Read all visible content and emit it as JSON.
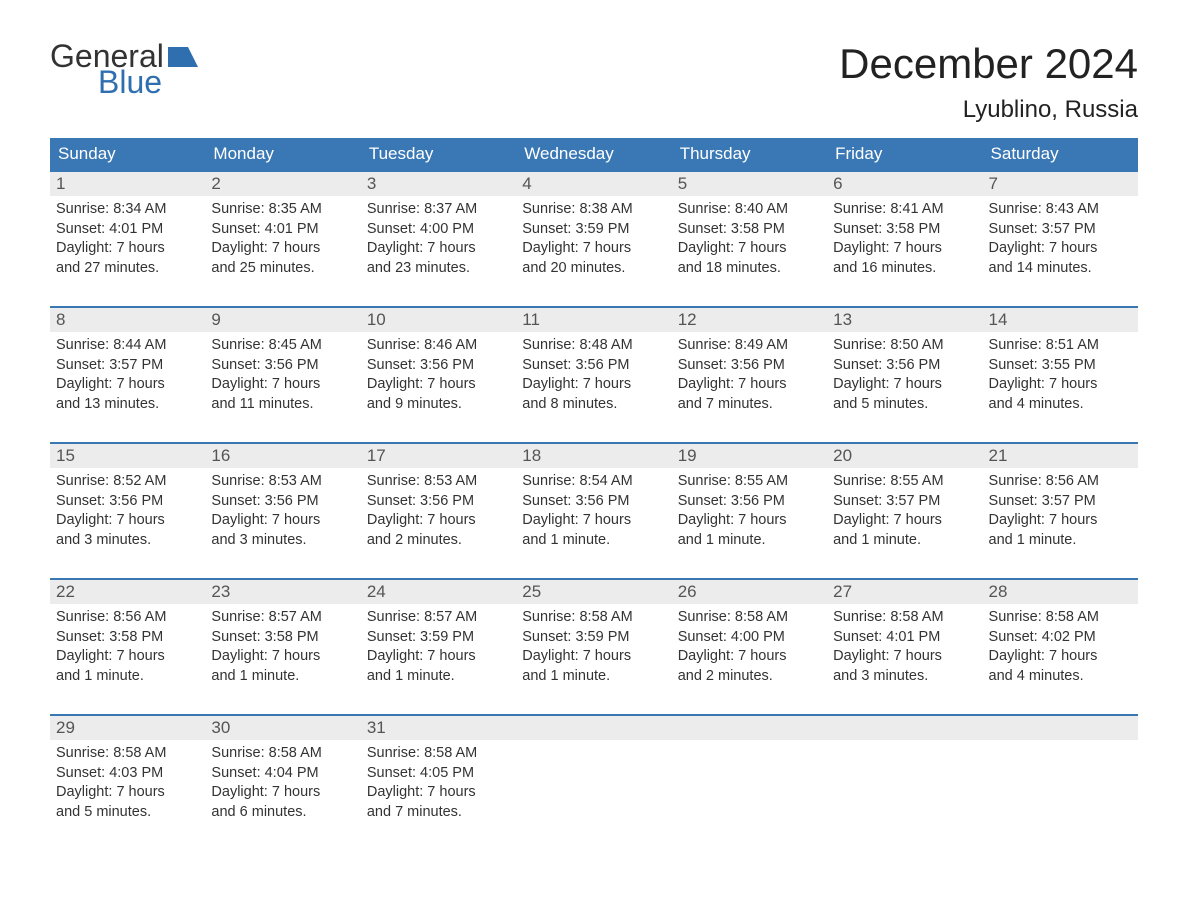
{
  "logo": {
    "word1": "General",
    "word2": "Blue",
    "iconColor": "#2f6fb0"
  },
  "title": "December 2024",
  "location": "Lyublino, Russia",
  "colors": {
    "headerBg": "#3a78b5",
    "headerText": "#ffffff",
    "dayNumBg": "#ececec",
    "dayNumText": "#555555",
    "bodyText": "#333333",
    "accent": "#3a78b5",
    "pageBg": "#ffffff"
  },
  "fonts": {
    "title_pt": 42,
    "location_pt": 24,
    "header_pt": 17,
    "body_pt": 14.5
  },
  "dayNames": [
    "Sunday",
    "Monday",
    "Tuesday",
    "Wednesday",
    "Thursday",
    "Friday",
    "Saturday"
  ],
  "weeks": [
    [
      {
        "n": "1",
        "sunrise": "8:34 AM",
        "sunset": "4:01 PM",
        "dl1": "Daylight: 7 hours",
        "dl2": "and 27 minutes."
      },
      {
        "n": "2",
        "sunrise": "8:35 AM",
        "sunset": "4:01 PM",
        "dl1": "Daylight: 7 hours",
        "dl2": "and 25 minutes."
      },
      {
        "n": "3",
        "sunrise": "8:37 AM",
        "sunset": "4:00 PM",
        "dl1": "Daylight: 7 hours",
        "dl2": "and 23 minutes."
      },
      {
        "n": "4",
        "sunrise": "8:38 AM",
        "sunset": "3:59 PM",
        "dl1": "Daylight: 7 hours",
        "dl2": "and 20 minutes."
      },
      {
        "n": "5",
        "sunrise": "8:40 AM",
        "sunset": "3:58 PM",
        "dl1": "Daylight: 7 hours",
        "dl2": "and 18 minutes."
      },
      {
        "n": "6",
        "sunrise": "8:41 AM",
        "sunset": "3:58 PM",
        "dl1": "Daylight: 7 hours",
        "dl2": "and 16 minutes."
      },
      {
        "n": "7",
        "sunrise": "8:43 AM",
        "sunset": "3:57 PM",
        "dl1": "Daylight: 7 hours",
        "dl2": "and 14 minutes."
      }
    ],
    [
      {
        "n": "8",
        "sunrise": "8:44 AM",
        "sunset": "3:57 PM",
        "dl1": "Daylight: 7 hours",
        "dl2": "and 13 minutes."
      },
      {
        "n": "9",
        "sunrise": "8:45 AM",
        "sunset": "3:56 PM",
        "dl1": "Daylight: 7 hours",
        "dl2": "and 11 minutes."
      },
      {
        "n": "10",
        "sunrise": "8:46 AM",
        "sunset": "3:56 PM",
        "dl1": "Daylight: 7 hours",
        "dl2": "and 9 minutes."
      },
      {
        "n": "11",
        "sunrise": "8:48 AM",
        "sunset": "3:56 PM",
        "dl1": "Daylight: 7 hours",
        "dl2": "and 8 minutes."
      },
      {
        "n": "12",
        "sunrise": "8:49 AM",
        "sunset": "3:56 PM",
        "dl1": "Daylight: 7 hours",
        "dl2": "and 7 minutes."
      },
      {
        "n": "13",
        "sunrise": "8:50 AM",
        "sunset": "3:56 PM",
        "dl1": "Daylight: 7 hours",
        "dl2": "and 5 minutes."
      },
      {
        "n": "14",
        "sunrise": "8:51 AM",
        "sunset": "3:55 PM",
        "dl1": "Daylight: 7 hours",
        "dl2": "and 4 minutes."
      }
    ],
    [
      {
        "n": "15",
        "sunrise": "8:52 AM",
        "sunset": "3:56 PM",
        "dl1": "Daylight: 7 hours",
        "dl2": "and 3 minutes."
      },
      {
        "n": "16",
        "sunrise": "8:53 AM",
        "sunset": "3:56 PM",
        "dl1": "Daylight: 7 hours",
        "dl2": "and 3 minutes."
      },
      {
        "n": "17",
        "sunrise": "8:53 AM",
        "sunset": "3:56 PM",
        "dl1": "Daylight: 7 hours",
        "dl2": "and 2 minutes."
      },
      {
        "n": "18",
        "sunrise": "8:54 AM",
        "sunset": "3:56 PM",
        "dl1": "Daylight: 7 hours",
        "dl2": "and 1 minute."
      },
      {
        "n": "19",
        "sunrise": "8:55 AM",
        "sunset": "3:56 PM",
        "dl1": "Daylight: 7 hours",
        "dl2": "and 1 minute."
      },
      {
        "n": "20",
        "sunrise": "8:55 AM",
        "sunset": "3:57 PM",
        "dl1": "Daylight: 7 hours",
        "dl2": "and 1 minute."
      },
      {
        "n": "21",
        "sunrise": "8:56 AM",
        "sunset": "3:57 PM",
        "dl1": "Daylight: 7 hours",
        "dl2": "and 1 minute."
      }
    ],
    [
      {
        "n": "22",
        "sunrise": "8:56 AM",
        "sunset": "3:58 PM",
        "dl1": "Daylight: 7 hours",
        "dl2": "and 1 minute."
      },
      {
        "n": "23",
        "sunrise": "8:57 AM",
        "sunset": "3:58 PM",
        "dl1": "Daylight: 7 hours",
        "dl2": "and 1 minute."
      },
      {
        "n": "24",
        "sunrise": "8:57 AM",
        "sunset": "3:59 PM",
        "dl1": "Daylight: 7 hours",
        "dl2": "and 1 minute."
      },
      {
        "n": "25",
        "sunrise": "8:58 AM",
        "sunset": "3:59 PM",
        "dl1": "Daylight: 7 hours",
        "dl2": "and 1 minute."
      },
      {
        "n": "26",
        "sunrise": "8:58 AM",
        "sunset": "4:00 PM",
        "dl1": "Daylight: 7 hours",
        "dl2": "and 2 minutes."
      },
      {
        "n": "27",
        "sunrise": "8:58 AM",
        "sunset": "4:01 PM",
        "dl1": "Daylight: 7 hours",
        "dl2": "and 3 minutes."
      },
      {
        "n": "28",
        "sunrise": "8:58 AM",
        "sunset": "4:02 PM",
        "dl1": "Daylight: 7 hours",
        "dl2": "and 4 minutes."
      }
    ],
    [
      {
        "n": "29",
        "sunrise": "8:58 AM",
        "sunset": "4:03 PM",
        "dl1": "Daylight: 7 hours",
        "dl2": "and 5 minutes."
      },
      {
        "n": "30",
        "sunrise": "8:58 AM",
        "sunset": "4:04 PM",
        "dl1": "Daylight: 7 hours",
        "dl2": "and 6 minutes."
      },
      {
        "n": "31",
        "sunrise": "8:58 AM",
        "sunset": "4:05 PM",
        "dl1": "Daylight: 7 hours",
        "dl2": "and 7 minutes."
      },
      {
        "empty": true
      },
      {
        "empty": true
      },
      {
        "empty": true
      },
      {
        "empty": true
      }
    ]
  ],
  "labels": {
    "sunrise": "Sunrise: ",
    "sunset": "Sunset: "
  }
}
